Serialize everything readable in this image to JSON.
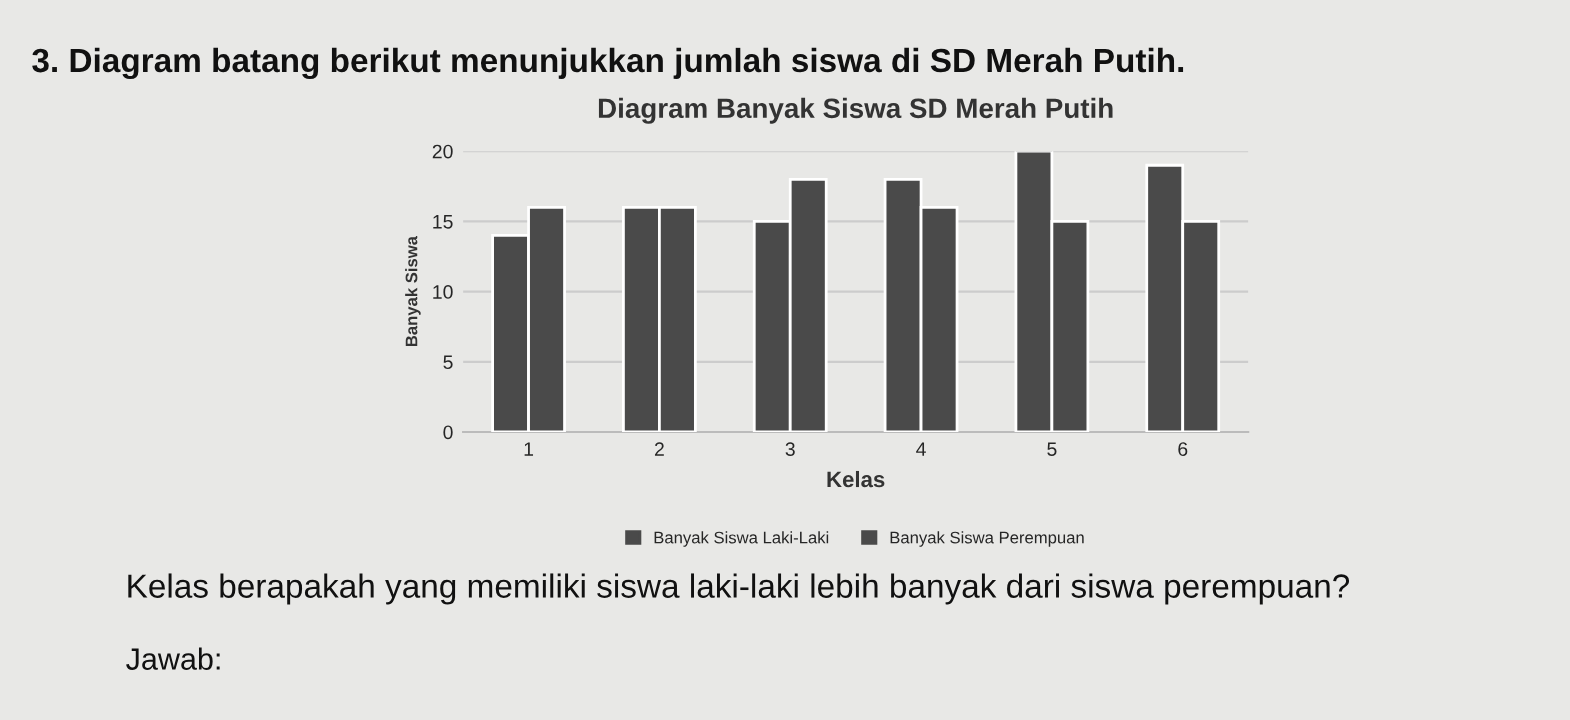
{
  "chart_data": {
    "type": "bar",
    "title": "Diagram Banyak Siswa SD Merah Putih",
    "xlabel": "Kelas",
    "ylabel": "Banyak Siswa",
    "categories": [
      "1",
      "2",
      "3",
      "4",
      "5",
      "6"
    ],
    "series": [
      {
        "name": "Banyak Siswa Laki-Laki",
        "color": "#4a4a4a",
        "values": [
          14,
          16,
          15,
          18,
          20,
          19
        ]
      },
      {
        "name": "Banyak Siswa Perempuan",
        "color": "#4a4a4a",
        "values": [
          16,
          16,
          18,
          16,
          15,
          15
        ]
      }
    ],
    "ylim": [
      0,
      20
    ],
    "yticks": [
      0,
      5,
      10,
      15,
      20
    ],
    "grid": "y",
    "legend": "bottom",
    "annotations": [
      "3. Diagram batang berikut menunjukkan jumlah siswa di SD Merah Putih.",
      "Kelas berapakah yang memiliki siswa laki-laki lebih banyak dari siswa perempuan?",
      "Jawab:"
    ]
  }
}
